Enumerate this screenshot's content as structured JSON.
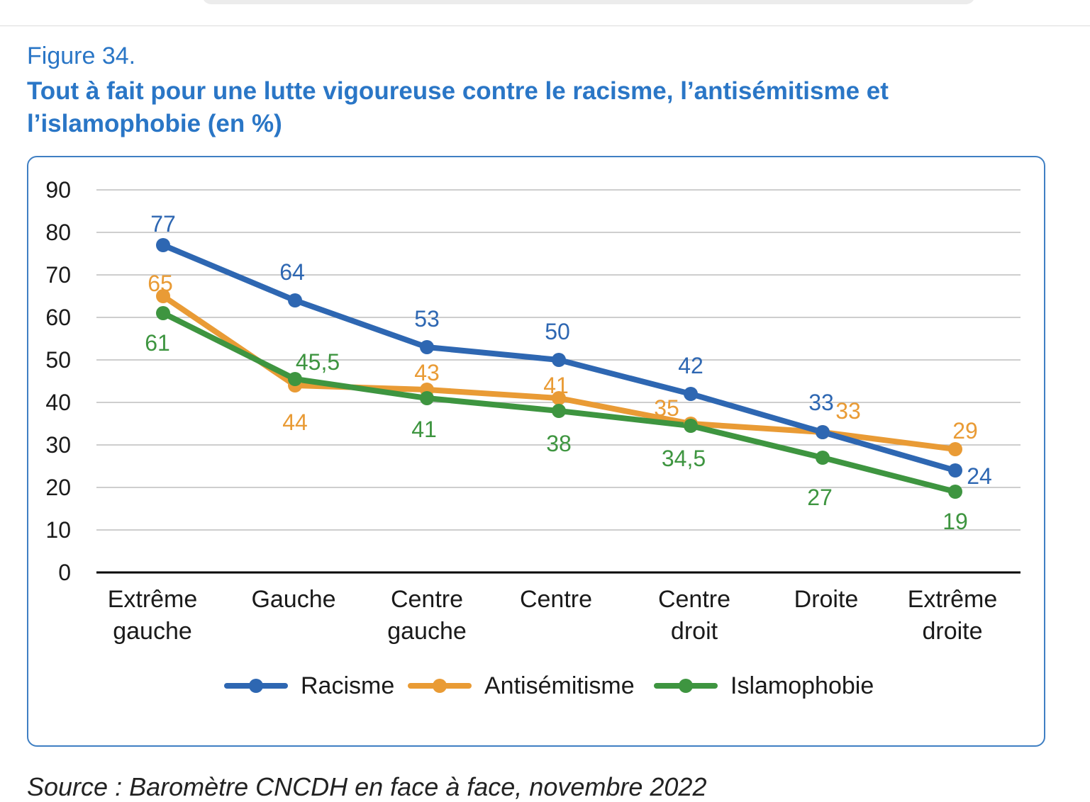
{
  "figure": {
    "label": "Figure 34.",
    "title": "Tout à fait pour une lutte vigoureuse contre le racisme, l’antisémitisme et l’islamophobie (en %)"
  },
  "source_text": "Source : Baromètre CNCDH en face à face, novembre 2022",
  "chart_data": {
    "type": "line",
    "title": "Tout à fait pour une lutte vigoureuse contre le racisme, l’antisémitisme et l’islamophobie (en %)",
    "xlabel": "",
    "ylabel": "",
    "ylim": [
      0,
      90
    ],
    "yticks": [
      0,
      10,
      20,
      30,
      40,
      50,
      60,
      70,
      80,
      90
    ],
    "grid": true,
    "legend": "bottom",
    "categories": [
      [
        "Extrême",
        "gauche"
      ],
      [
        "Gauche"
      ],
      [
        "Centre",
        "gauche"
      ],
      [
        "Centre"
      ],
      [
        "Centre",
        "droit"
      ],
      [
        "Droite"
      ],
      [
        "Extrême",
        "droite"
      ]
    ],
    "series": [
      {
        "name": "Racisme",
        "color": "#2e67b2",
        "values": [
          77,
          64,
          53,
          50,
          42,
          33,
          24
        ],
        "labels": [
          "77",
          "64",
          "53",
          "50",
          "42",
          "33",
          "24"
        ]
      },
      {
        "name": "Antisémitisme",
        "color": "#e99b35",
        "values": [
          65,
          44,
          43,
          41,
          35,
          33,
          29
        ],
        "labels": [
          "65",
          "44",
          "43",
          "41",
          "35",
          "33",
          "29"
        ]
      },
      {
        "name": "Islamophobie",
        "color": "#3e9540",
        "values": [
          61,
          45.5,
          41,
          38,
          34.5,
          27,
          19
        ],
        "labels": [
          "61",
          "45,5",
          "41",
          "38",
          "34,5",
          "27",
          "19"
        ]
      }
    ]
  }
}
